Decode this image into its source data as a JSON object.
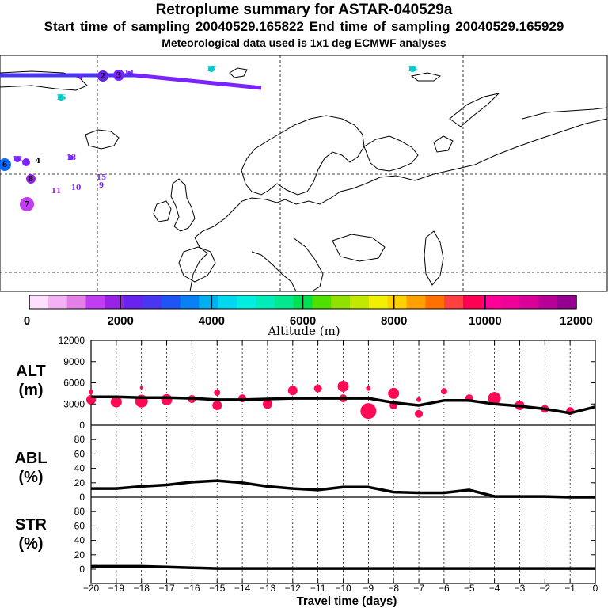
{
  "header": {
    "title": "Retroplume summary for ASTAR-040529a",
    "sampling_line": "Start time of sampling 20040529.165822      End time of sampling 20040529.165929",
    "met_line": "Meteorological data used is 1x1 deg ECMWF analyses"
  },
  "colors": {
    "alt_dot": "#ff0a55",
    "trajectory": "#7a22ff",
    "curve": "#000000",
    "grid": "#000000"
  },
  "map": {
    "markers": [
      {
        "label": "1",
        "color": "#7a22ff"
      },
      {
        "label": "2",
        "color": "#6a22ee"
      },
      {
        "label": "3",
        "color": "#7a22ff"
      },
      {
        "label": "4",
        "color": "#000000"
      },
      {
        "label": "5",
        "color": "#7a22ff"
      },
      {
        "label": "6",
        "color": "#0a6aff"
      },
      {
        "label": "7",
        "color": "#c23cf2"
      },
      {
        "label": "8",
        "color": "#9a22e6"
      },
      {
        "label": "9",
        "color": "#7a22ff"
      },
      {
        "label": "10",
        "color": "#7a22ff"
      },
      {
        "label": "11",
        "color": "#9a22e6"
      },
      {
        "label": "12",
        "color": "#7a22ff"
      },
      {
        "label": "13",
        "color": "#7a22ff"
      },
      {
        "label": "14",
        "color": "#7a22ff"
      },
      {
        "label": "15",
        "color": "#7a22ff"
      },
      {
        "label": "16",
        "color": "#00cccc"
      },
      {
        "label": "17",
        "color": "#00cccc"
      },
      {
        "label": "18",
        "color": "#00cccc"
      }
    ]
  },
  "colorbar": {
    "colors": [
      "#fde0fd",
      "#f4b2f4",
      "#e57fe8",
      "#c23cf2",
      "#9a22e6",
      "#6a22ee",
      "#4a35f0",
      "#2055f5",
      "#0a80f5",
      "#00b0f0",
      "#00d8f0",
      "#00eee0",
      "#00ecb8",
      "#00e890",
      "#00e050",
      "#50e000",
      "#90e000",
      "#c0e800",
      "#f0f000",
      "#ffd000",
      "#ffa000",
      "#ff7000",
      "#ff4040",
      "#ff0055",
      "#ff0099",
      "#f00099",
      "#d80099",
      "#b80099",
      "#960090"
    ],
    "tick_labels": [
      "0",
      "2000",
      "4000",
      "6000",
      "8000",
      "10000",
      "12000"
    ],
    "axis_label": "Altitude (m)"
  },
  "panel_labels": {
    "alt": [
      "ALT",
      "(m)"
    ],
    "abl": [
      "ABL",
      "(%)"
    ],
    "str": [
      "STR",
      "(%)"
    ]
  },
  "chart_data": [
    {
      "type": "line",
      "name": "ALT",
      "ylabel": "ALT (m)",
      "ylim": [
        0,
        12000
      ],
      "yticks": [
        "0",
        "3000",
        "6000",
        "9000",
        "12000"
      ],
      "x": [
        -20,
        -19,
        -18,
        -17,
        -16,
        -15,
        -14,
        -13,
        -12,
        -11,
        -10,
        -9,
        -8,
        -7,
        -6,
        -5,
        -4,
        -3,
        -2,
        -1,
        0
      ],
      "median": [
        4000,
        4000,
        3900,
        3900,
        3800,
        3600,
        3600,
        3700,
        3800,
        3800,
        3800,
        3800,
        3200,
        2800,
        3500,
        3500,
        3000,
        2700,
        2300,
        1700,
        2600
      ],
      "clusters": [
        {
          "x": -20,
          "alt": 3600,
          "size": 6
        },
        {
          "x": -19,
          "alt": 3300,
          "size": 7
        },
        {
          "x": -18,
          "alt": 3400,
          "size": 8
        },
        {
          "x": -17,
          "alt": 3600,
          "size": 7
        },
        {
          "x": -16,
          "alt": 3700,
          "size": 5
        },
        {
          "x": -15,
          "alt": 2800,
          "size": 6
        },
        {
          "x": -14,
          "alt": 3800,
          "size": 5
        },
        {
          "x": -13,
          "alt": 3000,
          "size": 6
        },
        {
          "x": -12,
          "alt": 4900,
          "size": 6
        },
        {
          "x": -11,
          "alt": 5200,
          "size": 5
        },
        {
          "x": -10,
          "alt": 5500,
          "size": 7
        },
        {
          "x": -10,
          "alt": 3800,
          "size": 5
        },
        {
          "x": -9,
          "alt": 2000,
          "size": 10
        },
        {
          "x": -9,
          "alt": 5200,
          "size": 3
        },
        {
          "x": -8,
          "alt": 4500,
          "size": 7
        },
        {
          "x": -8,
          "alt": 2800,
          "size": 5
        },
        {
          "x": -7,
          "alt": 3600,
          "size": 3
        },
        {
          "x": -7,
          "alt": 1600,
          "size": 5
        },
        {
          "x": -6,
          "alt": 4800,
          "size": 4
        },
        {
          "x": -5,
          "alt": 3800,
          "size": 5
        },
        {
          "x": -4,
          "alt": 3800,
          "size": 8
        },
        {
          "x": -3,
          "alt": 2800,
          "size": 6
        },
        {
          "x": -2,
          "alt": 2300,
          "size": 5
        },
        {
          "x": -1,
          "alt": 2000,
          "size": 5
        },
        {
          "x": -15,
          "alt": 4600,
          "size": 4
        },
        {
          "x": -20,
          "alt": 4700,
          "size": 3
        },
        {
          "x": -18,
          "alt": 5300,
          "size": 2
        }
      ]
    },
    {
      "type": "line",
      "name": "ABL",
      "ylabel": "ABL (%)",
      "ylim": [
        0,
        100
      ],
      "yticks": [
        "0",
        "20",
        "40",
        "60",
        "80"
      ],
      "x": [
        -20,
        -19,
        -18,
        -17,
        -16,
        -15,
        -14,
        -13,
        -12,
        -11,
        -10,
        -9,
        -8,
        -7,
        -6,
        -5,
        -4,
        -3,
        -2,
        -1,
        0
      ],
      "values": [
        12,
        12,
        15,
        17,
        21,
        23,
        20,
        15,
        12,
        10,
        14,
        14,
        7,
        6,
        6,
        10,
        1,
        1,
        1,
        0,
        0
      ]
    },
    {
      "type": "line",
      "name": "STR",
      "ylabel": "STR (%)",
      "ylim": [
        0,
        100
      ],
      "yticks": [
        "0",
        "20",
        "40",
        "60",
        "80"
      ],
      "x": [
        -20,
        -19,
        -18,
        -17,
        -16,
        -15,
        -14,
        -13,
        -12,
        -11,
        -10,
        -9,
        -8,
        -7,
        -6,
        -5,
        -4,
        -3,
        -2,
        -1,
        0
      ],
      "values": [
        4,
        4,
        4,
        3,
        2,
        1,
        1,
        1,
        1,
        1,
        1,
        1,
        1,
        1,
        1,
        1,
        1,
        1,
        1,
        1,
        1
      ]
    }
  ],
  "xaxis": {
    "tick_labels": [
      "−20",
      "−19",
      "−18",
      "−17",
      "−16",
      "−15",
      "−14",
      "−13",
      "−12",
      "−11",
      "−10",
      "−9",
      "−8",
      "−7",
      "−6",
      "−5",
      "−4",
      "−3",
      "−2",
      "−1",
      "0"
    ],
    "label": "Travel time (days)"
  }
}
